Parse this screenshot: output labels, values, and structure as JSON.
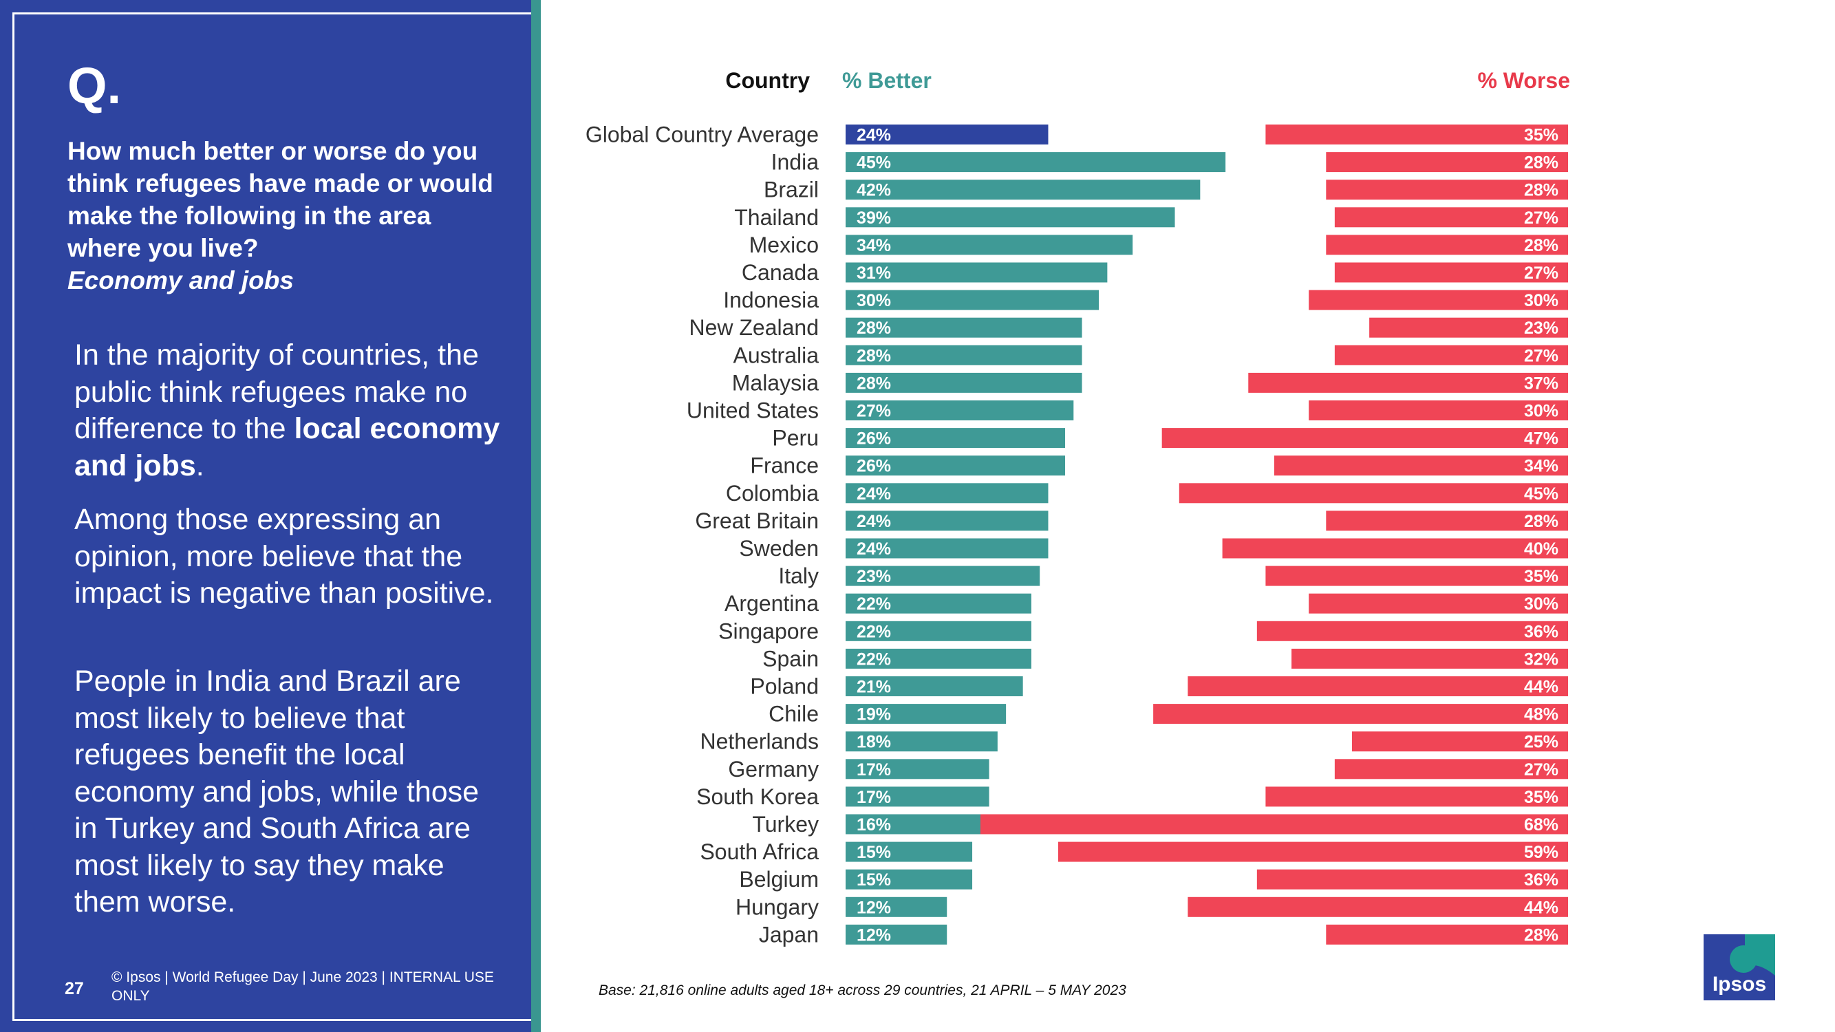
{
  "slide": {
    "q_mark": "Q.",
    "question": "How much better or worse do you think refugees have made or would make the following in the area where you live?",
    "topic": "Economy and jobs",
    "para1_pre": "In the majority of countries, the public think refugees make no difference to the ",
    "para1_bold": "local economy and jobs",
    "para1_post": ".",
    "para2": "Among those expressing an opinion, more believe that the impact is negative than positive.",
    "para3": "People in India and Brazil are most likely to believe that refugees benefit the local economy and jobs, while those in Turkey and South Africa are most likely to say they make them worse.",
    "page_number": "27",
    "footer": "© Ipsos | World Refugee Day | June 2023 | INTERNAL USE ONLY",
    "base_note": "Base: 21,816 online adults aged 18+ across 29 countries,  21 APRIL – 5 MAY 2023",
    "logo_text": "Ipsos"
  },
  "colors": {
    "panel": "#2e44a0",
    "teal": "#3a9690",
    "better": "#3f9a96",
    "global_better": "#2e44a0",
    "worse": "#f04556",
    "better_header": "#3f9a96",
    "worse_header": "#e8394a"
  },
  "chart_data": {
    "type": "bar",
    "orientation": "horizontal",
    "category_header": "Country",
    "categories": [
      "Global Country Average",
      "India",
      "Brazil",
      "Thailand",
      "Mexico",
      "Canada",
      "Indonesia",
      "New Zealand",
      "Australia",
      "Malaysia",
      "United States",
      "Peru",
      "France",
      "Colombia",
      "Great Britain",
      "Sweden",
      "Italy",
      "Argentina",
      "Singapore",
      "Spain",
      "Poland",
      "Chile",
      "Netherlands",
      "Germany",
      "South Korea",
      "Turkey",
      "South Africa",
      "Belgium",
      "Hungary",
      "Japan"
    ],
    "series": [
      {
        "name": "% Better",
        "values": [
          24,
          45,
          42,
          39,
          34,
          31,
          30,
          28,
          28,
          28,
          27,
          26,
          26,
          24,
          24,
          24,
          23,
          22,
          22,
          22,
          21,
          19,
          18,
          17,
          17,
          16,
          15,
          15,
          12,
          12
        ]
      },
      {
        "name": "% Worse",
        "values": [
          35,
          28,
          28,
          27,
          28,
          27,
          30,
          23,
          27,
          37,
          30,
          47,
          34,
          45,
          28,
          40,
          35,
          30,
          36,
          32,
          44,
          48,
          25,
          27,
          35,
          68,
          59,
          36,
          44,
          28
        ]
      }
    ],
    "value_suffix": "%"
  }
}
